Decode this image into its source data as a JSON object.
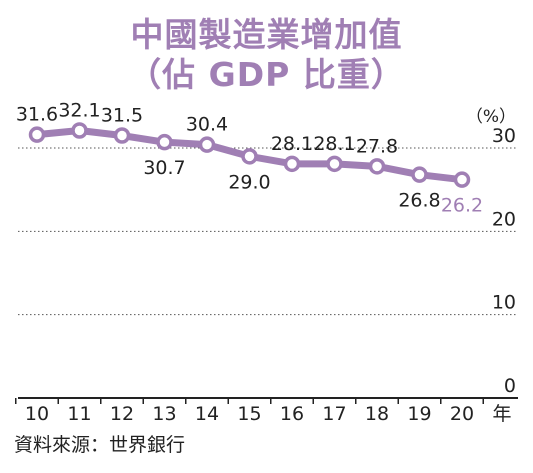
{
  "chart_data": {
    "type": "line",
    "title": "中國製造業增加值",
    "subtitle": "（佔 GDP 比重）",
    "unit_label": "（%）",
    "x_unit": "年",
    "categories": [
      "10",
      "11",
      "12",
      "13",
      "14",
      "15",
      "16",
      "17",
      "18",
      "19",
      "20"
    ],
    "values": [
      31.6,
      32.1,
      31.5,
      30.7,
      30.4,
      29.0,
      28.1,
      28.1,
      27.8,
      26.8,
      26.2
    ],
    "value_labels": [
      "31.6",
      "32.1",
      "31.5",
      "30.7",
      "30.4",
      "29.0",
      "28.1",
      "28.1",
      "27.8",
      "26.8",
      "26.2"
    ],
    "y_ticks": [
      "0",
      "10",
      "20",
      "30"
    ],
    "ylim": [
      0,
      30
    ],
    "line_color": "#a07fb4",
    "highlight_label_color": "#a07fb4",
    "source": "資料來源：世界銀行"
  }
}
